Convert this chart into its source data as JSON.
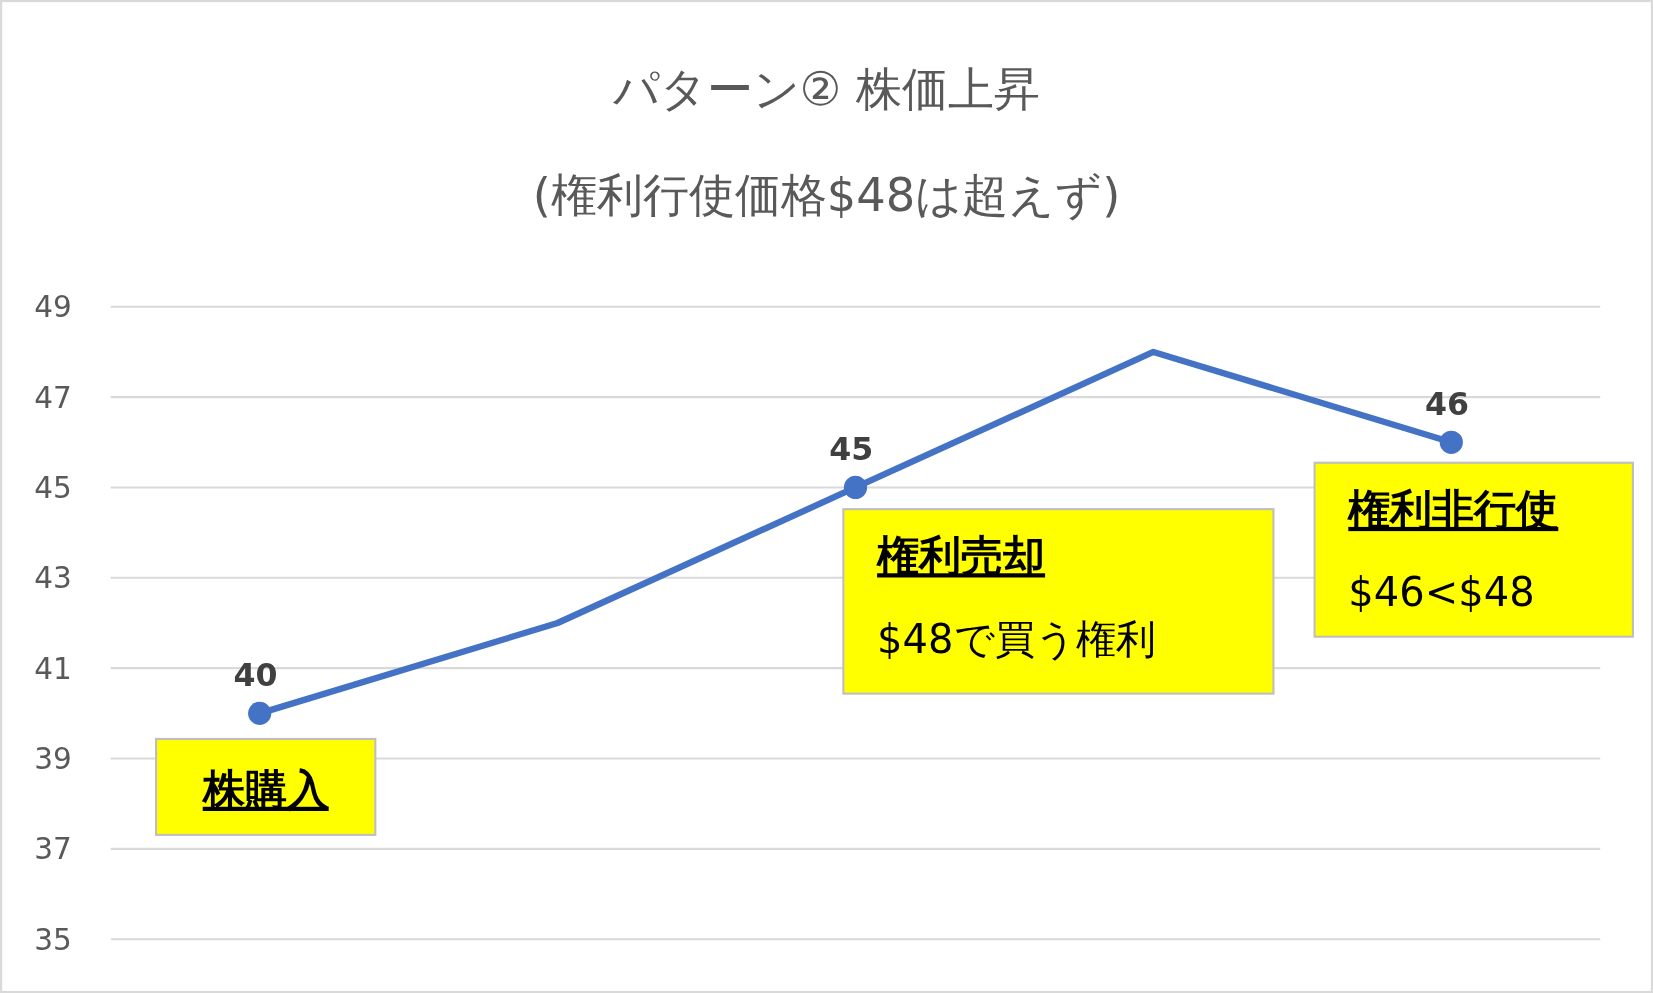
{
  "chart_data": {
    "type": "line",
    "title": "パターン② 株価上昇",
    "subtitle": "(権利行使価格$48は超えず)",
    "categories": [
      null,
      null,
      null,
      null,
      null
    ],
    "series": [
      {
        "color": "#4472c4",
        "values": [
          40,
          42,
          45,
          48,
          46
        ],
        "value_labels": [
          "40",
          null,
          "45",
          null,
          "46"
        ]
      }
    ],
    "ylim": [
      35,
      49
    ],
    "yticks": [
      35,
      37,
      39,
      41,
      43,
      45,
      47,
      49
    ],
    "grid": "y",
    "marker": "circle",
    "line_style": "solid",
    "annotations": [
      "株購入",
      "権利売却\n$48で買う権利",
      "権利非行使\n$46<$48"
    ]
  }
}
